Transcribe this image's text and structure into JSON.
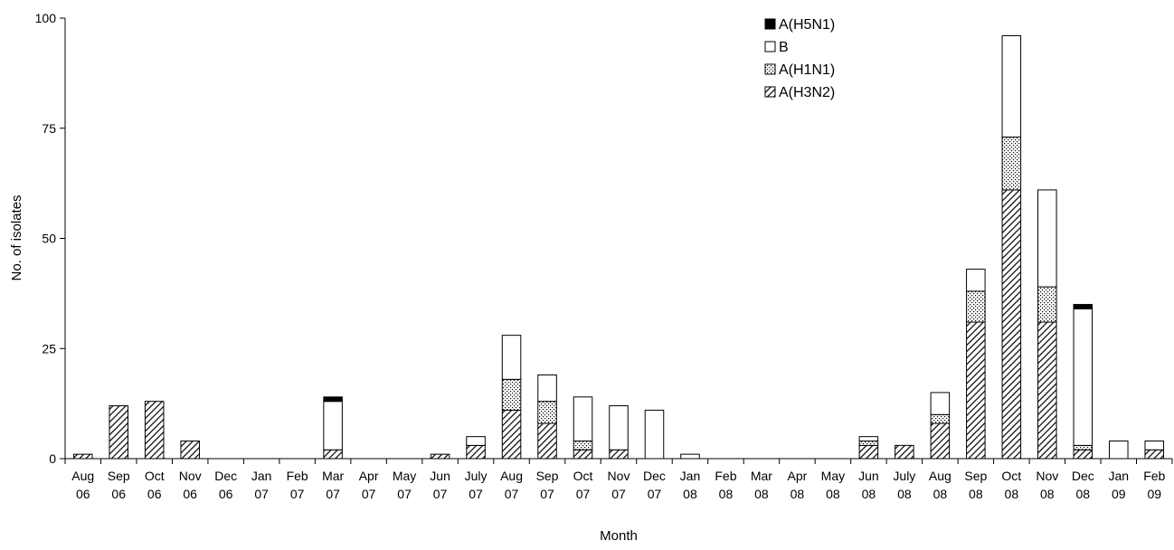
{
  "chart_data": {
    "type": "bar",
    "stacked": true,
    "xlabel": "Month",
    "ylabel": "No. of isolates",
    "ylim": [
      0,
      100
    ],
    "yticks": [
      0,
      25,
      50,
      75,
      100
    ],
    "grid": false,
    "legend_position": "top-right",
    "categories": [
      [
        "Aug",
        "06"
      ],
      [
        "Sep",
        "06"
      ],
      [
        "Oct",
        "06"
      ],
      [
        "Nov",
        "06"
      ],
      [
        "Dec",
        "06"
      ],
      [
        "Jan",
        "07"
      ],
      [
        "Feb",
        "07"
      ],
      [
        "Mar",
        "07"
      ],
      [
        "Apr",
        "07"
      ],
      [
        "May",
        "07"
      ],
      [
        "Jun",
        "07"
      ],
      [
        "July",
        "07"
      ],
      [
        "Aug",
        "07"
      ],
      [
        "Sep",
        "07"
      ],
      [
        "Oct",
        "07"
      ],
      [
        "Nov",
        "07"
      ],
      [
        "Dec",
        "07"
      ],
      [
        "Jan",
        "08"
      ],
      [
        "Feb",
        "08"
      ],
      [
        "Mar",
        "08"
      ],
      [
        "Apr",
        "08"
      ],
      [
        "May",
        "08"
      ],
      [
        "Jun",
        "08"
      ],
      [
        "July",
        "08"
      ],
      [
        "Aug",
        "08"
      ],
      [
        "Sep",
        "08"
      ],
      [
        "Oct",
        "08"
      ],
      [
        "Nov",
        "08"
      ],
      [
        "Dec",
        "08"
      ],
      [
        "Jan",
        "09"
      ],
      [
        "Feb",
        "09"
      ]
    ],
    "series": [
      {
        "name": "A(H3N2)",
        "pattern": "hatch",
        "values": [
          1,
          12,
          13,
          4,
          0,
          0,
          0,
          2,
          0,
          0,
          1,
          3,
          11,
          8,
          2,
          2,
          0,
          0,
          0,
          0,
          0,
          0,
          3,
          3,
          8,
          31,
          61,
          31,
          2,
          0,
          2
        ]
      },
      {
        "name": "A(H1N1)",
        "pattern": "dots",
        "values": [
          0,
          0,
          0,
          0,
          0,
          0,
          0,
          0,
          0,
          0,
          0,
          0,
          7,
          5,
          2,
          0,
          0,
          0,
          0,
          0,
          0,
          0,
          1,
          0,
          2,
          7,
          12,
          8,
          1,
          0,
          0
        ]
      },
      {
        "name": "B",
        "pattern": "white",
        "values": [
          0,
          0,
          0,
          0,
          0,
          0,
          0,
          11,
          0,
          0,
          0,
          2,
          10,
          6,
          10,
          10,
          11,
          1,
          0,
          0,
          0,
          0,
          1,
          0,
          5,
          5,
          23,
          22,
          31,
          4,
          2
        ]
      },
      {
        "name": "A(H5N1)",
        "pattern": "black",
        "values": [
          0,
          0,
          0,
          0,
          0,
          0,
          0,
          1,
          0,
          0,
          0,
          0,
          0,
          0,
          0,
          0,
          0,
          0,
          0,
          0,
          0,
          0,
          0,
          0,
          0,
          0,
          0,
          0,
          1,
          0,
          0
        ]
      }
    ],
    "legend_order": [
      "A(H5N1)",
      "B",
      "A(H1N1)",
      "A(H3N2)"
    ],
    "colors": {
      "fill_black": "#000000",
      "fill_white": "#ffffff",
      "stroke": "#000000"
    }
  }
}
